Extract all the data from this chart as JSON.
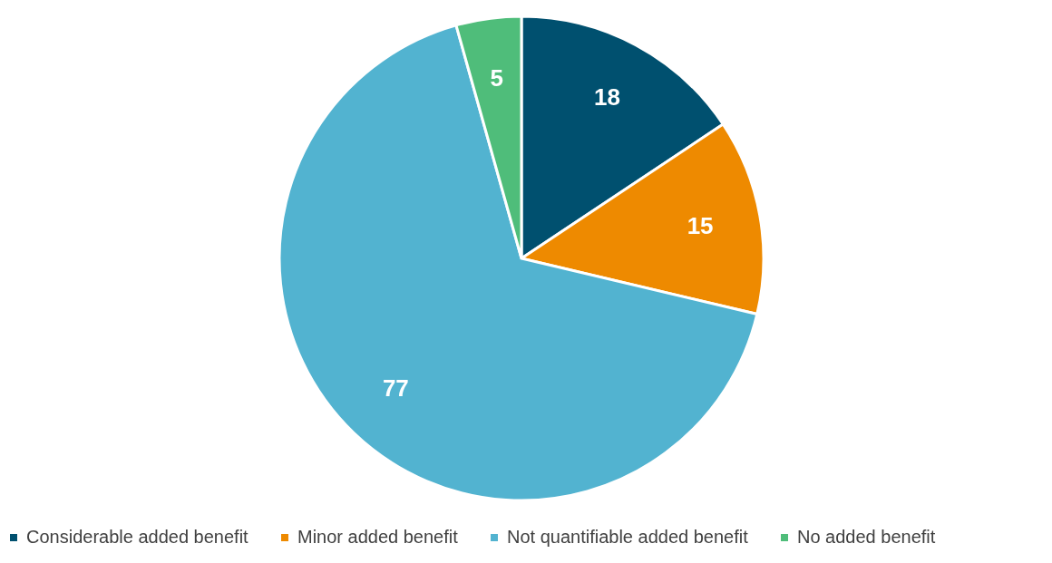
{
  "chart_data": {
    "type": "pie",
    "categories": [
      "Considerable added benefit",
      "Minor added benefit",
      "Not quantifiable added benefit",
      "No added benefit"
    ],
    "values": [
      18,
      15,
      77,
      5
    ],
    "colors": [
      "#00506f",
      "#ee8a00",
      "#52b3d0",
      "#4fbd7a"
    ],
    "data_labels": true,
    "legend": "bottom"
  }
}
